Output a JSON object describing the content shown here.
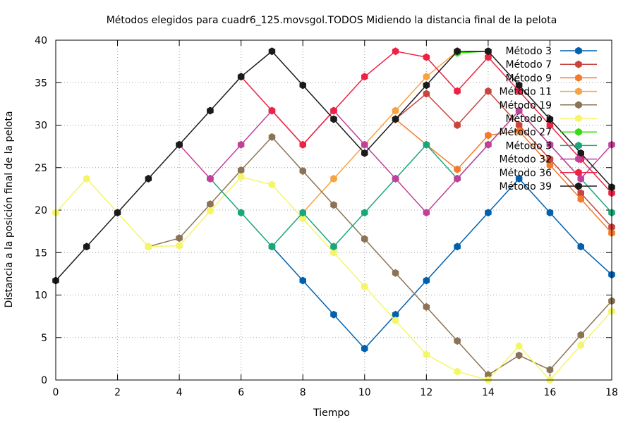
{
  "chart_data": {
    "type": "line",
    "title": "Métodos elegidos para cuadr6_125.movsgol.TODOS Midiendo la distancia final de la pelota",
    "xlabel": "Tiempo",
    "ylabel": "Distancia a la posición final de la pelota",
    "xlim": [
      0,
      18
    ],
    "ylim": [
      0,
      40
    ],
    "xticks": [
      0,
      2,
      4,
      6,
      8,
      10,
      12,
      14,
      16,
      18
    ],
    "yticks": [
      0,
      5,
      10,
      15,
      20,
      25,
      30,
      35,
      40
    ],
    "grid": true,
    "legend_position": "top-right",
    "series": [
      {
        "name": "Método 3",
        "color": "#0060ad",
        "points": [
          [
            7,
            15.7
          ],
          [
            8,
            11.7
          ],
          [
            9,
            7.7
          ],
          [
            10,
            3.7
          ],
          [
            11,
            7.7
          ],
          [
            12,
            11.7
          ],
          [
            13,
            15.7
          ],
          [
            14,
            19.7
          ],
          [
            15,
            23.7
          ],
          [
            16,
            19.7
          ],
          [
            17,
            15.7
          ],
          [
            18,
            12.4
          ]
        ]
      },
      {
        "name": "Método 7",
        "color": "#c8453e",
        "points": [
          [
            11,
            30.7
          ],
          [
            12,
            33.7
          ],
          [
            13,
            30.0
          ],
          [
            14,
            34.0
          ],
          [
            15,
            30.0
          ],
          [
            16,
            26.0
          ],
          [
            17,
            22.0
          ],
          [
            18,
            18.0
          ]
        ]
      },
      {
        "name": "Método 9",
        "color": "#f37a2a",
        "points": [
          [
            11,
            30.7
          ],
          [
            12,
            27.7
          ],
          [
            13,
            24.8
          ],
          [
            14,
            28.8
          ],
          [
            15,
            29.3
          ],
          [
            16,
            25.3
          ],
          [
            17,
            21.3
          ],
          [
            18,
            17.3
          ]
        ]
      },
      {
        "name": "Método 11",
        "color": "#f7a340",
        "points": [
          [
            8,
            19.7
          ],
          [
            9,
            23.7
          ],
          [
            10,
            27.7
          ],
          [
            11,
            31.7
          ],
          [
            12,
            35.7
          ],
          [
            13,
            38.7
          ],
          [
            14,
            38.7
          ]
        ]
      },
      {
        "name": "Método 19",
        "color": "#8b7355",
        "points": [
          [
            3,
            15.7
          ],
          [
            4,
            16.7
          ],
          [
            5,
            20.7
          ],
          [
            6,
            24.7
          ],
          [
            7,
            28.6
          ],
          [
            8,
            24.6
          ],
          [
            9,
            20.6
          ],
          [
            10,
            16.6
          ],
          [
            11,
            12.6
          ],
          [
            12,
            8.6
          ],
          [
            13,
            4.6
          ],
          [
            14,
            0.6
          ],
          [
            15,
            2.9
          ],
          [
            16,
            1.2
          ],
          [
            17,
            5.3
          ],
          [
            18,
            9.3
          ]
        ]
      },
      {
        "name": "Método 2",
        "color": "#f5f56a",
        "points": [
          [
            0,
            19.7
          ],
          [
            1,
            23.7
          ],
          [
            2,
            19.7
          ],
          [
            3,
            15.7
          ],
          [
            4,
            15.8
          ],
          [
            5,
            19.9
          ],
          [
            6,
            23.9
          ],
          [
            7,
            23.0
          ],
          [
            8,
            19.0
          ],
          [
            9,
            15.0
          ],
          [
            10,
            11.0
          ],
          [
            11,
            7.0
          ],
          [
            12,
            3.0
          ],
          [
            13,
            1.0
          ],
          [
            14,
            0.0
          ],
          [
            15,
            4.0
          ],
          [
            16,
            0.0
          ],
          [
            17,
            4.1
          ],
          [
            18,
            8.1
          ]
        ]
      },
      {
        "name": "Método 27",
        "color": "#33dd11",
        "points": [
          [
            13,
            38.5
          ],
          [
            14,
            38.7
          ]
        ]
      },
      {
        "name": "Método 3",
        "color": "#1aa67a",
        "points": [
          [
            5,
            23.7
          ],
          [
            6,
            19.7
          ],
          [
            7,
            15.7
          ],
          [
            8,
            19.7
          ],
          [
            9,
            15.7
          ],
          [
            10,
            19.7
          ],
          [
            11,
            23.7
          ],
          [
            12,
            27.7
          ],
          [
            13,
            23.7
          ],
          [
            14,
            27.7
          ],
          [
            15,
            31.7
          ],
          [
            16,
            27.7
          ],
          [
            17,
            23.7
          ],
          [
            18,
            19.7
          ]
        ]
      },
      {
        "name": "Método 32",
        "color": "#c0409a",
        "points": [
          [
            4,
            27.7
          ],
          [
            5,
            23.7
          ],
          [
            6,
            27.7
          ],
          [
            7,
            31.7
          ],
          [
            8,
            27.7
          ],
          [
            9,
            31.7
          ],
          [
            10,
            27.7
          ],
          [
            11,
            23.7
          ],
          [
            12,
            19.7
          ],
          [
            13,
            23.7
          ],
          [
            14,
            27.7
          ],
          [
            15,
            31.7
          ],
          [
            16,
            27.7
          ],
          [
            17,
            23.7
          ],
          [
            18,
            27.7
          ]
        ]
      },
      {
        "name": "Método 36",
        "color": "#ee2244",
        "points": [
          [
            6,
            35.7
          ],
          [
            7,
            31.7
          ],
          [
            8,
            27.7
          ],
          [
            9,
            31.7
          ],
          [
            10,
            35.7
          ],
          [
            11,
            38.7
          ],
          [
            12,
            38.0
          ],
          [
            13,
            34.0
          ],
          [
            14,
            38.0
          ],
          [
            15,
            34.0
          ],
          [
            16,
            30.0
          ],
          [
            17,
            26.0
          ],
          [
            18,
            22.0
          ]
        ]
      },
      {
        "name": "Método 39",
        "color": "#1a1a1a",
        "points": [
          [
            0,
            11.7
          ],
          [
            1,
            15.7
          ],
          [
            2,
            19.7
          ],
          [
            3,
            23.7
          ],
          [
            4,
            27.7
          ],
          [
            5,
            31.7
          ],
          [
            6,
            35.7
          ],
          [
            7,
            38.7
          ],
          [
            8,
            34.7
          ],
          [
            9,
            30.7
          ],
          [
            10,
            26.7
          ],
          [
            11,
            30.7
          ],
          [
            12,
            34.7
          ],
          [
            13,
            38.7
          ],
          [
            14,
            38.7
          ],
          [
            15,
            34.7
          ],
          [
            16,
            30.7
          ],
          [
            17,
            26.7
          ],
          [
            18,
            22.7
          ]
        ]
      }
    ]
  }
}
